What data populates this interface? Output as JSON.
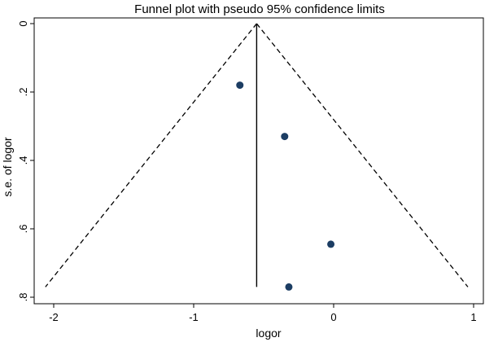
{
  "chart_data": {
    "type": "scatter",
    "title": "Funnel plot with pseudo 95% confidence limits",
    "xlabel": "logor",
    "ylabel": "s.e. of logor",
    "xlim": [
      -2.1,
      1.0
    ],
    "ylim": [
      0,
      0.8
    ],
    "y_reversed": true,
    "x_ticks": [
      -2,
      -1,
      0,
      1
    ],
    "x_tick_labels": [
      "-2",
      "-1",
      "0",
      "1"
    ],
    "y_ticks": [
      0,
      0.2,
      0.4,
      0.6,
      0.8
    ],
    "y_tick_labels": [
      "0",
      ".2",
      ".4",
      ".6",
      ".8"
    ],
    "grid": false,
    "pooled_estimate": -0.55,
    "funnel_se_max": 0.77,
    "points": [
      {
        "x": -0.67,
        "y": 0.18
      },
      {
        "x": -0.35,
        "y": 0.33
      },
      {
        "x": -0.02,
        "y": 0.645
      },
      {
        "x": -0.32,
        "y": 0.77
      }
    ],
    "colors": {
      "point": "#1c3d63",
      "line": "#000000",
      "frame": "#000000"
    }
  }
}
